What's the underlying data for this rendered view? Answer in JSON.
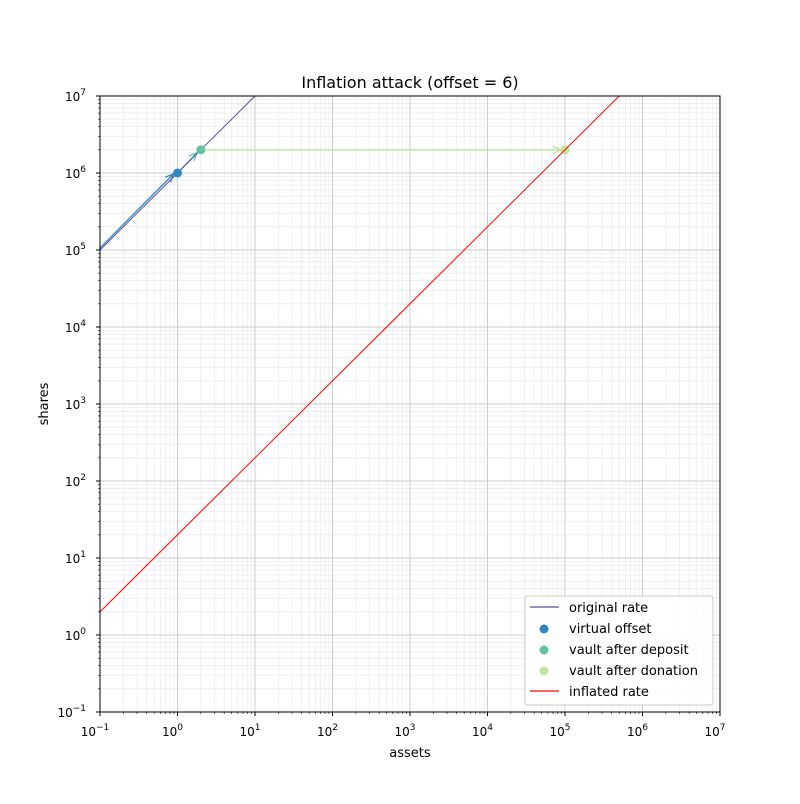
{
  "chart_data": {
    "type": "line",
    "title": "Inflation attack (offset = 6)",
    "xlabel": "assets",
    "ylabel": "shares",
    "xscale": "log",
    "yscale": "log",
    "xlim": [
      0.1,
      10000000
    ],
    "ylim": [
      0.1,
      10000000
    ],
    "grid": "major and minor",
    "legend_position": "bottom-right",
    "x_tick_exponents": [
      -1,
      0,
      1,
      2,
      3,
      4,
      5,
      6,
      7
    ],
    "y_tick_exponents": [
      -1,
      0,
      1,
      2,
      3,
      4,
      5,
      6,
      7
    ],
    "series": [
      {
        "name": "original rate",
        "kind": "line",
        "color": "#5e4fa2",
        "x": [
          0.1,
          10
        ],
        "y": [
          100000,
          10000000
        ]
      },
      {
        "name": "virtual offset",
        "kind": "point",
        "color": "#3288bd",
        "x": [
          1
        ],
        "y": [
          1000000
        ]
      },
      {
        "name": "vault after deposit",
        "kind": "point",
        "color": "#66c2a5",
        "x": [
          2
        ],
        "y": [
          2000000
        ]
      },
      {
        "name": "vault after donation",
        "kind": "point",
        "color": "#bfe5a0",
        "x": [
          100000
        ],
        "y": [
          2000000
        ]
      },
      {
        "name": "inflated rate",
        "kind": "line",
        "color": "#ff0000",
        "x": [
          0.1,
          500000
        ],
        "y": [
          2,
          10000000
        ]
      }
    ],
    "arrows": [
      {
        "from": [
          0.1,
          100000
        ],
        "to": [
          1,
          1000000
        ],
        "color": "#3288bd"
      },
      {
        "from": [
          1,
          1000000
        ],
        "to": [
          2,
          2000000
        ],
        "color": "#66c2a5"
      },
      {
        "from": [
          2,
          2000000
        ],
        "to": [
          100000,
          2000000
        ],
        "color": "#bfe5a0"
      }
    ]
  }
}
